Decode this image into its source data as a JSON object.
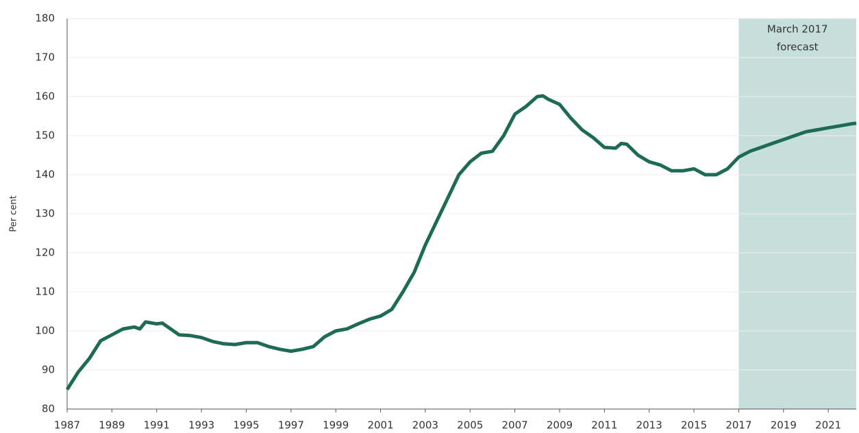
{
  "chart_data": {
    "type": "line",
    "y_label": "Per cent",
    "annotation": [
      "March 2017",
      "forecast"
    ],
    "shaded_region": [
      2017,
      2022.25
    ],
    "shade_color": "#c6dfdb",
    "x": [
      1987,
      1987.5,
      1988,
      1988.5,
      1989,
      1989.5,
      1990,
      1990.25,
      1990.5,
      1991,
      1991.25,
      1991.5,
      1992,
      1992.5,
      1993,
      1993.5,
      1994,
      1994.5,
      1995,
      1995.5,
      1996,
      1996.5,
      1997,
      1997.5,
      1998,
      1998.5,
      1999,
      1999.5,
      2000,
      2000.5,
      2001,
      2001.5,
      2002,
      2002.5,
      2003,
      2003.5,
      2004,
      2004.5,
      2005,
      2005.5,
      2006,
      2006.5,
      2007,
      2007.5,
      2008,
      2008.25,
      2008.5,
      2009,
      2009.5,
      2010,
      2010.5,
      2011,
      2011.5,
      2011.75,
      2012,
      2012.5,
      2013,
      2013.5,
      2014,
      2014.5,
      2015,
      2015.5,
      2016,
      2016.5,
      2017,
      2017.5,
      2018,
      2018.5,
      2019,
      2019.5,
      2020,
      2020.5,
      2021,
      2021.5,
      2022,
      2022.25
    ],
    "series": [
      {
        "color": "#1d6b55",
        "values": [
          85,
          89.5,
          93,
          97.5,
          99,
          100.5,
          101,
          100.5,
          102.3,
          101.8,
          102,
          101,
          99,
          98.8,
          98.3,
          97.3,
          96.7,
          96.5,
          97,
          97,
          96,
          95.3,
          94.8,
          95.3,
          96,
          98.5,
          100,
          100.5,
          101.8,
          103,
          103.8,
          105.5,
          110,
          115,
          122,
          128,
          134,
          140,
          143.3,
          145.5,
          146,
          150,
          155.5,
          157.5,
          160,
          160.2,
          159.3,
          158,
          154.5,
          151.5,
          149.5,
          147,
          146.8,
          148,
          147.8,
          145,
          143.3,
          142.5,
          141,
          141,
          141.5,
          140,
          140,
          141.5,
          144.5,
          146,
          147,
          148,
          149,
          150,
          151,
          151.5,
          152,
          152.5,
          153,
          153.2
        ]
      }
    ],
    "xlim": [
      1987,
      2022.25
    ],
    "xticks": [
      1987,
      1989,
      1991,
      1993,
      1995,
      1997,
      1999,
      2001,
      2003,
      2005,
      2007,
      2009,
      2011,
      2013,
      2015,
      2017,
      2019,
      2021
    ],
    "ylim": [
      80,
      180
    ],
    "yticks": [
      80,
      90,
      100,
      110,
      120,
      130,
      140,
      150,
      160,
      170,
      180
    ],
    "grid": true
  }
}
